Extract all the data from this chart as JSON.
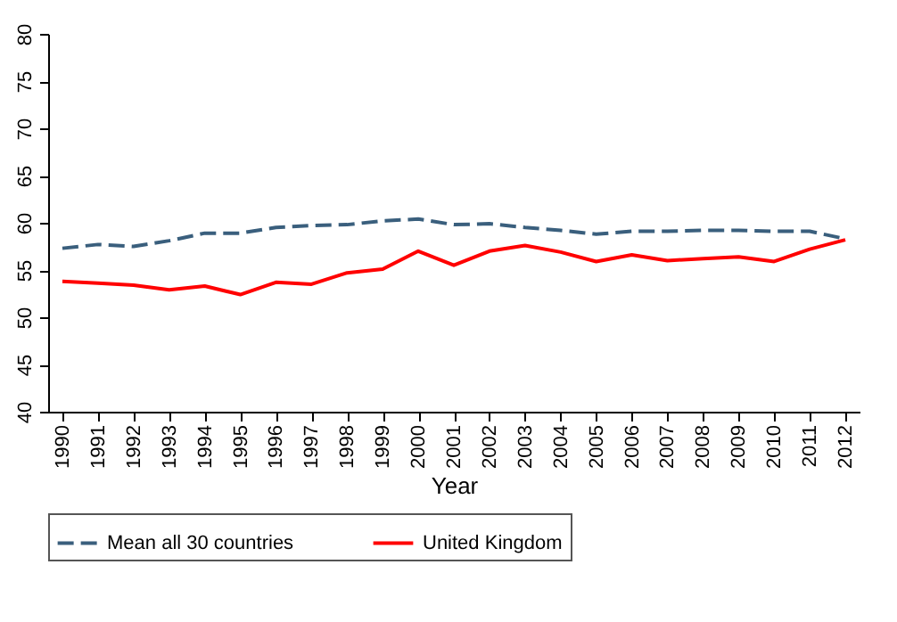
{
  "chart_data": {
    "type": "line",
    "xlabel": "Year",
    "categories": [
      "1990",
      "1991",
      "1992",
      "1993",
      "1994",
      "1995",
      "1996",
      "1997",
      "1998",
      "1999",
      "2000",
      "2001",
      "2002",
      "2003",
      "2004",
      "2005",
      "2006",
      "2007",
      "2008",
      "2009",
      "2010",
      "2011",
      "2012"
    ],
    "series": [
      {
        "name": "Mean all 30 countries",
        "color": "#3a5f7d",
        "line_style": "dashed",
        "values": [
          57.3,
          57.7,
          57.5,
          58.1,
          58.9,
          58.9,
          59.5,
          59.7,
          59.8,
          60.2,
          60.4,
          59.8,
          59.9,
          59.5,
          59.2,
          58.8,
          59.1,
          59.1,
          59.2,
          59.2,
          59.1,
          59.1,
          58.3
        ]
      },
      {
        "name": "United Kingdom",
        "color": "#ff0000",
        "line_style": "solid",
        "values": [
          53.8,
          53.6,
          53.4,
          52.9,
          53.3,
          52.4,
          53.7,
          53.5,
          54.7,
          55.1,
          57.0,
          55.5,
          57.0,
          57.6,
          56.9,
          55.9,
          56.6,
          56.0,
          56.2,
          56.4,
          55.9,
          57.2,
          58.2
        ]
      }
    ],
    "ylim": [
      40,
      80
    ],
    "yticks": [
      40,
      45,
      50,
      55,
      60,
      65,
      70,
      75,
      80
    ],
    "grid": false,
    "legend": "bottom",
    "marker": "none"
  }
}
